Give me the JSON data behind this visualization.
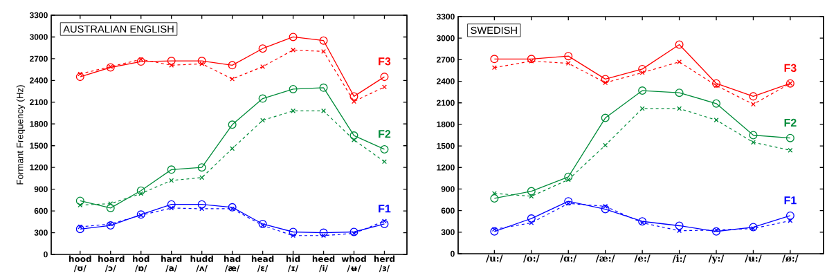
{
  "chart_data": [
    {
      "type": "line",
      "title": "AUSTRALIAN ENGLISH",
      "ylabel": "Formant Frequency (Hz)",
      "categories": [
        "hood /ʊ/",
        "hoard /ɔ/",
        "hod /ɒ/",
        "hard /a/",
        "hudd /ʌ/",
        "had /æ/",
        "head /ɛ/",
        "hid /ɪ/",
        "heed /i/",
        "whod /ʉ/",
        "herd /ɜ/"
      ],
      "ylim": [
        0,
        3300
      ],
      "yticks": [
        0,
        300,
        600,
        900,
        1200,
        1500,
        1800,
        2100,
        2400,
        2700,
        3000,
        3300
      ],
      "series": [
        {
          "name": "F3",
          "color": "#ff0000",
          "marker": "circle",
          "line_style": "solid",
          "values": [
            2450,
            2580,
            2660,
            2670,
            2670,
            2610,
            2840,
            3000,
            2950,
            2180,
            2450
          ]
        },
        {
          "color": "#ff0000",
          "marker": "cross",
          "line_style": "dashed",
          "values": [
            2490,
            2590,
            2690,
            2610,
            2630,
            2420,
            2590,
            2820,
            2800,
            2110,
            2310
          ]
        },
        {
          "name": "F2",
          "color": "#008c3a",
          "marker": "circle",
          "line_style": "solid",
          "values": [
            740,
            640,
            880,
            1170,
            1200,
            1790,
            2150,
            2280,
            2300,
            1640,
            1450
          ]
        },
        {
          "color": "#008c3a",
          "marker": "cross",
          "line_style": "dashed",
          "values": [
            680,
            700,
            840,
            1020,
            1060,
            1460,
            1850,
            1980,
            1980,
            1580,
            1280
          ]
        },
        {
          "name": "F1",
          "color": "#0000ff",
          "marker": "circle",
          "line_style": "solid",
          "values": [
            350,
            400,
            550,
            690,
            690,
            650,
            420,
            310,
            300,
            310,
            420
          ]
        },
        {
          "color": "#0000ff",
          "marker": "cross",
          "line_style": "dashed",
          "values": [
            380,
            420,
            540,
            640,
            630,
            630,
            400,
            260,
            260,
            290,
            460
          ]
        }
      ]
    },
    {
      "type": "line",
      "title": "SWEDISH",
      "categories": [
        "/u:/",
        "/o:/",
        "/ɑ:/",
        "/æ:/",
        "/e:/",
        "/i:/",
        "/y:/",
        "/ʉ:/",
        "/ø:/"
      ],
      "ylim": [
        0,
        3300
      ],
      "yticks": [
        0,
        300,
        600,
        900,
        1200,
        1500,
        1800,
        2100,
        2400,
        2700,
        3000,
        3300
      ],
      "series": [
        {
          "name": "F3",
          "color": "#ff0000",
          "marker": "circle",
          "line_style": "solid",
          "values": [
            2710,
            2710,
            2750,
            2430,
            2570,
            2910,
            2370,
            2190,
            2370
          ]
        },
        {
          "color": "#ff0000",
          "marker": "cross",
          "line_style": "dashed",
          "values": [
            2590,
            2680,
            2650,
            2380,
            2520,
            2670,
            2340,
            2080,
            2370
          ]
        },
        {
          "name": "F2",
          "color": "#008c3a",
          "marker": "circle",
          "line_style": "solid",
          "values": [
            770,
            870,
            1070,
            1890,
            2270,
            2240,
            2090,
            1650,
            1610
          ]
        },
        {
          "color": "#008c3a",
          "marker": "cross",
          "line_style": "dashed",
          "values": [
            840,
            800,
            1030,
            1510,
            2020,
            2020,
            1860,
            1550,
            1440
          ]
        },
        {
          "name": "F1",
          "color": "#0000ff",
          "marker": "circle",
          "line_style": "solid",
          "values": [
            310,
            490,
            730,
            620,
            450,
            390,
            310,
            370,
            530
          ]
        },
        {
          "color": "#0000ff",
          "marker": "cross",
          "line_style": "dashed",
          "values": [
            340,
            430,
            700,
            660,
            430,
            320,
            330,
            350,
            460
          ]
        }
      ]
    }
  ]
}
